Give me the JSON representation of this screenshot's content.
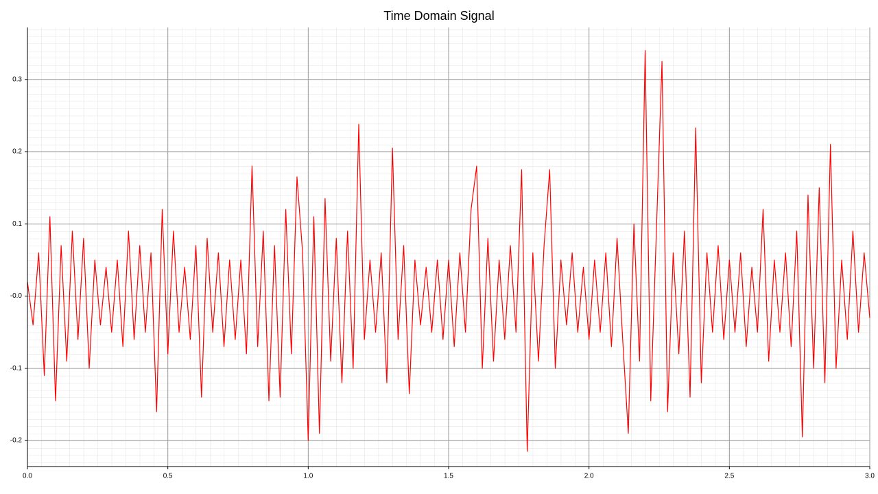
{
  "chart_data": {
    "type": "line",
    "title": "Time Domain Signal",
    "x": [
      0,
      0.02,
      0.04,
      0.06,
      0.08,
      0.1,
      0.12,
      0.14,
      0.16,
      0.18,
      0.2,
      0.22,
      0.24,
      0.26,
      0.28,
      0.3,
      0.32,
      0.34,
      0.36,
      0.38,
      0.4,
      0.42,
      0.44,
      0.46,
      0.48,
      0.5,
      0.52,
      0.54,
      0.56,
      0.58,
      0.6,
      0.62,
      0.64,
      0.66,
      0.68,
      0.7,
      0.72,
      0.74,
      0.76,
      0.78,
      0.8,
      0.82,
      0.84,
      0.86,
      0.88,
      0.9,
      0.92,
      0.94,
      0.96,
      0.98,
      1,
      1.02,
      1.04,
      1.06,
      1.08,
      1.1,
      1.12,
      1.14,
      1.16,
      1.18,
      1.2,
      1.22,
      1.24,
      1.26,
      1.28,
      1.3,
      1.32,
      1.34,
      1.36,
      1.38,
      1.4,
      1.42,
      1.44,
      1.46,
      1.48,
      1.5,
      1.52,
      1.54,
      1.56,
      1.58,
      1.6,
      1.62,
      1.64,
      1.66,
      1.68,
      1.7,
      1.72,
      1.74,
      1.76,
      1.78,
      1.8,
      1.82,
      1.84,
      1.86,
      1.88,
      1.9,
      1.92,
      1.94,
      1.96,
      1.98,
      2,
      2.02,
      2.04,
      2.06,
      2.08,
      2.1,
      2.12,
      2.14,
      2.16,
      2.18,
      2.2,
      2.22,
      2.24,
      2.26,
      2.28,
      2.3,
      2.32,
      2.34,
      2.36,
      2.38,
      2.4,
      2.42,
      2.44,
      2.46,
      2.48,
      2.5,
      2.52,
      2.54,
      2.56,
      2.58,
      2.6,
      2.62,
      2.64,
      2.66,
      2.68,
      2.7,
      2.72,
      2.74,
      2.76,
      2.78,
      2.8,
      2.82,
      2.84,
      2.86,
      2.88,
      2.9,
      2.92,
      2.94,
      2.96,
      2.98,
      3
    ],
    "values": [
      0.02,
      -0.04,
      0.06,
      -0.11,
      0.11,
      -0.145,
      0.07,
      -0.09,
      0.09,
      -0.06,
      0.08,
      -0.1,
      0.05,
      -0.04,
      0.04,
      -0.05,
      0.05,
      -0.07,
      0.09,
      -0.06,
      0.07,
      -0.05,
      0.06,
      -0.16,
      0.12,
      -0.08,
      0.09,
      -0.05,
      0.04,
      -0.06,
      0.07,
      -0.14,
      0.08,
      -0.05,
      0.06,
      -0.07,
      0.05,
      -0.06,
      0.05,
      -0.08,
      0.18,
      -0.07,
      0.09,
      -0.145,
      0.07,
      -0.14,
      0.12,
      -0.08,
      0.165,
      0.06,
      -0.2,
      0.11,
      -0.19,
      0.135,
      -0.09,
      0.08,
      -0.12,
      0.09,
      -0.1,
      0.238,
      -0.06,
      0.05,
      -0.05,
      0.06,
      -0.12,
      0.205,
      -0.06,
      0.07,
      -0.135,
      0.05,
      -0.04,
      0.04,
      -0.05,
      0.05,
      -0.06,
      0.05,
      -0.07,
      0.06,
      -0.05,
      0.12,
      0.18,
      -0.1,
      0.08,
      -0.09,
      0.05,
      -0.06,
      0.07,
      -0.05,
      0.175,
      -0.215,
      0.06,
      -0.09,
      0.07,
      0.175,
      -0.1,
      0.05,
      -0.04,
      0.06,
      -0.05,
      0.04,
      -0.06,
      0.05,
      -0.05,
      0.06,
      -0.07,
      0.08,
      -0.06,
      -0.19,
      0.1,
      -0.09,
      0.34,
      -0.145,
      0.09,
      0.325,
      -0.16,
      0.06,
      -0.08,
      0.09,
      -0.14,
      0.233,
      -0.12,
      0.06,
      -0.05,
      0.07,
      -0.06,
      0.05,
      -0.05,
      0.06,
      -0.07,
      0.04,
      -0.05,
      0.12,
      -0.09,
      0.05,
      -0.05,
      0.06,
      -0.07,
      0.09,
      -0.195,
      0.14,
      -0.1,
      0.15,
      -0.12,
      0.21,
      -0.1,
      0.05,
      -0.06,
      0.09,
      -0.05,
      0.06,
      -0.03
    ],
    "color": "#ff0000",
    "xlim": [
      0,
      3
    ],
    "xticks": [
      {
        "value": 0,
        "label": "0.0"
      },
      0.5,
      {
        "value": 1,
        "label": "1.0"
      },
      1.5,
      {
        "value": 2,
        "label": "2.0"
      },
      2.5,
      {
        "value": 3,
        "label": "3.0"
      }
    ],
    "ylim": [
      -0.236,
      0.372
    ],
    "yticks": [
      -0.2,
      -0.1,
      {
        "value": 0,
        "label": "-0.0"
      },
      0.1,
      0.2,
      0.3
    ],
    "grid": true
  }
}
